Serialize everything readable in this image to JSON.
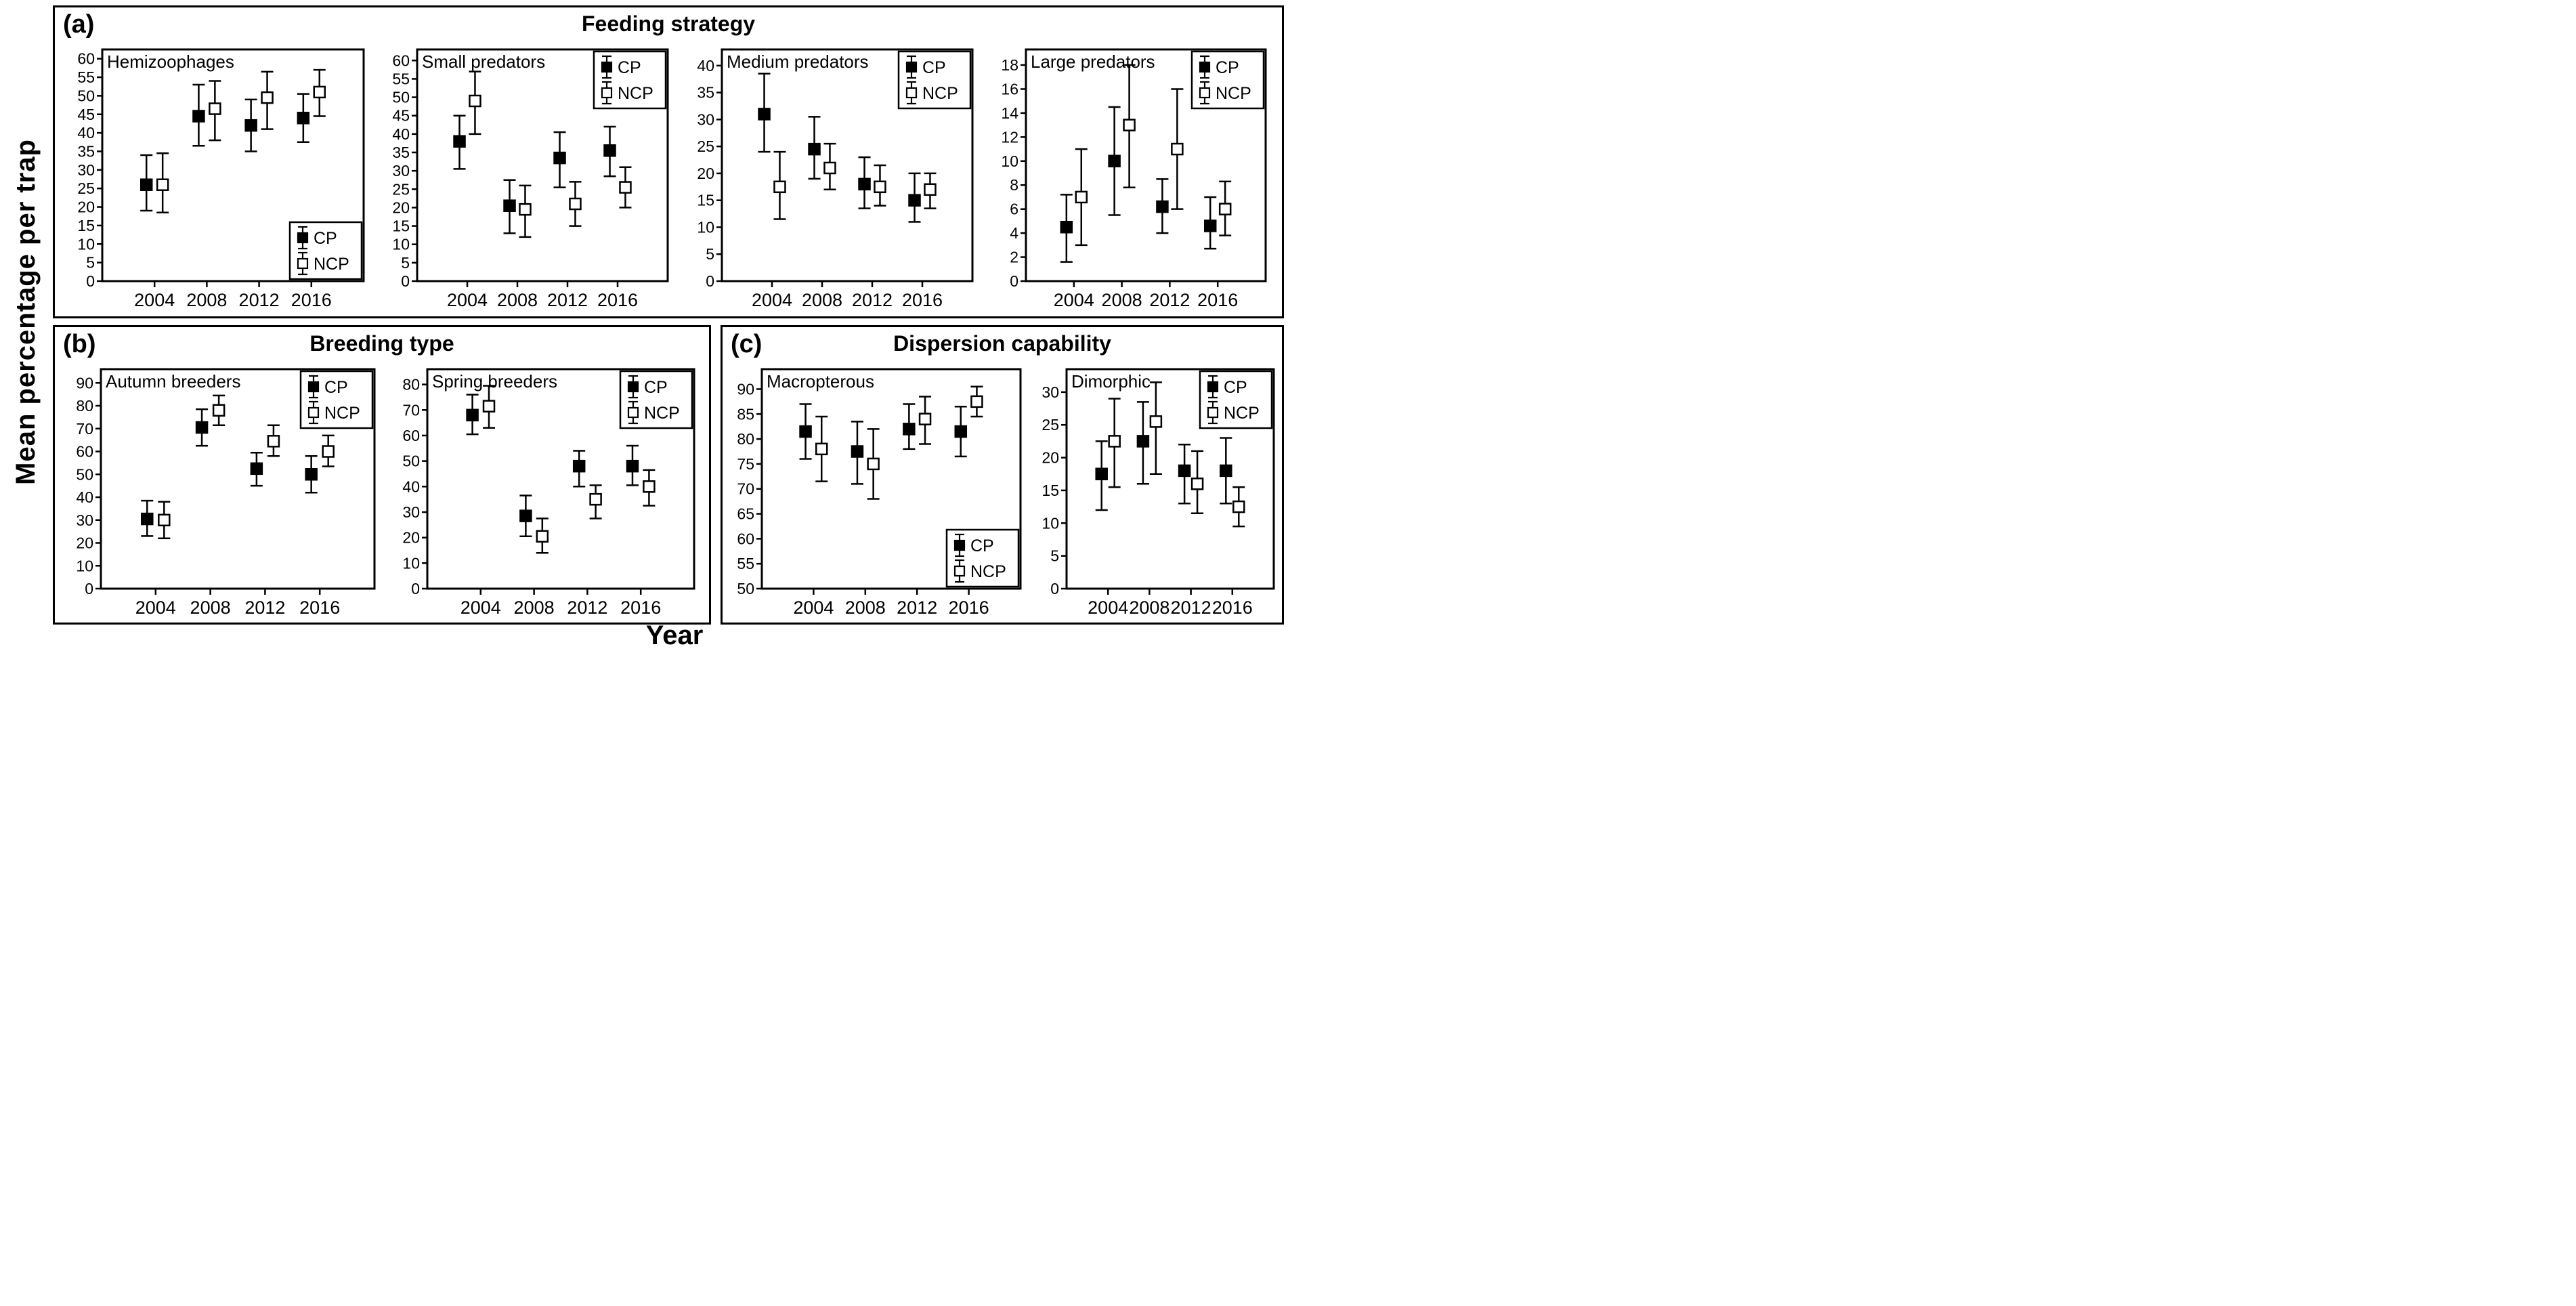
{
  "figure": {
    "ylabel": "Mean percentage per trap",
    "xlabel": "Year",
    "colors": {
      "foreground": "#000000",
      "background": "#ffffff"
    },
    "years": [
      2004,
      2008,
      2012,
      2016
    ],
    "panels": [
      {
        "label": "(a)",
        "title": "Feeding strategy"
      },
      {
        "label": "(b)",
        "title": "Breeding type"
      },
      {
        "label": "(c)",
        "title": "Dispersion capability"
      }
    ]
  },
  "chart_data": [
    {
      "panel": "a",
      "title": "Hemizoophages",
      "type": "scatter",
      "x": [
        2004,
        2008,
        2012,
        2016
      ],
      "xlim": [
        2000,
        2020
      ],
      "ylim": [
        0,
        62.5
      ],
      "yticks": [
        0,
        5,
        10,
        15,
        20,
        25,
        30,
        35,
        40,
        45,
        50,
        55,
        60
      ],
      "legend_pos": "bottom-right",
      "grid": false,
      "series": [
        {
          "name": "CP",
          "marker": "filled-square",
          "fill": "#000000",
          "values": [
            26,
            44.5,
            42,
            44
          ],
          "err_low": [
            19,
            36.5,
            35,
            37.5
          ],
          "err_high": [
            34,
            53,
            49,
            50.5
          ]
        },
        {
          "name": "NCP",
          "marker": "open-square",
          "fill": "#ffffff",
          "values": [
            26,
            46.5,
            49.5,
            51
          ],
          "err_low": [
            18.5,
            38,
            41,
            44.5
          ],
          "err_high": [
            34.5,
            54,
            56.5,
            57
          ]
        }
      ]
    },
    {
      "panel": "a",
      "title": "Small predators",
      "type": "scatter",
      "x": [
        2004,
        2008,
        2012,
        2016
      ],
      "xlim": [
        2000,
        2020
      ],
      "ylim": [
        0,
        63
      ],
      "yticks": [
        0,
        5,
        10,
        15,
        20,
        25,
        30,
        35,
        40,
        45,
        50,
        55,
        60
      ],
      "legend_pos": "top-right",
      "grid": false,
      "series": [
        {
          "name": "CP",
          "marker": "filled-square",
          "fill": "#000000",
          "values": [
            38,
            20.5,
            33.5,
            35.5
          ],
          "err_low": [
            30.5,
            13,
            25.5,
            28.5
          ],
          "err_high": [
            45,
            27.5,
            40.5,
            42
          ]
        },
        {
          "name": "NCP",
          "marker": "open-square",
          "fill": "#ffffff",
          "values": [
            49,
            19.5,
            21,
            25.5
          ],
          "err_low": [
            40,
            12,
            15,
            20
          ],
          "err_high": [
            57,
            26,
            27,
            31
          ]
        }
      ]
    },
    {
      "panel": "a",
      "title": "Medium predators",
      "type": "scatter",
      "x": [
        2004,
        2008,
        2012,
        2016
      ],
      "xlim": [
        2000,
        2020
      ],
      "ylim": [
        0,
        43
      ],
      "yticks": [
        0,
        5,
        10,
        15,
        20,
        25,
        30,
        35,
        40
      ],
      "legend_pos": "top-right",
      "grid": false,
      "series": [
        {
          "name": "CP",
          "marker": "filled-square",
          "fill": "#000000",
          "values": [
            31,
            24.5,
            18,
            15
          ],
          "err_low": [
            24,
            19,
            13.5,
            11
          ],
          "err_high": [
            38.5,
            30.5,
            23,
            20
          ]
        },
        {
          "name": "NCP",
          "marker": "open-square",
          "fill": "#ffffff",
          "values": [
            17.5,
            21,
            17.5,
            17
          ],
          "err_low": [
            11.5,
            17,
            14,
            13.5
          ],
          "err_high": [
            24,
            25.5,
            21.5,
            20
          ]
        }
      ]
    },
    {
      "panel": "a",
      "title": "Large predators",
      "type": "scatter",
      "x": [
        2004,
        2008,
        2012,
        2016
      ],
      "xlim": [
        2000,
        2020
      ],
      "ylim": [
        0,
        19.3
      ],
      "yticks": [
        0,
        2,
        4,
        6,
        8,
        10,
        12,
        14,
        16,
        18
      ],
      "legend_pos": "top-right",
      "grid": false,
      "series": [
        {
          "name": "CP",
          "marker": "filled-square",
          "fill": "#000000",
          "values": [
            4.5,
            10,
            6.2,
            4.6
          ],
          "err_low": [
            1.6,
            5.5,
            4,
            2.7
          ],
          "err_high": [
            7.2,
            14.5,
            8.5,
            7
          ]
        },
        {
          "name": "NCP",
          "marker": "open-square",
          "fill": "#ffffff",
          "values": [
            7,
            13,
            11,
            6
          ],
          "err_low": [
            3,
            7.8,
            6,
            3.8
          ],
          "err_high": [
            11,
            18,
            16,
            8.3
          ]
        }
      ]
    },
    {
      "panel": "b",
      "title": "Autumn breeders",
      "type": "scatter",
      "x": [
        2004,
        2008,
        2012,
        2016
      ],
      "xlim": [
        2000,
        2020
      ],
      "ylim": [
        0,
        96
      ],
      "yticks": [
        0,
        10,
        20,
        30,
        40,
        50,
        60,
        70,
        80,
        90
      ],
      "legend_pos": "top-right",
      "grid": false,
      "series": [
        {
          "name": "CP",
          "marker": "filled-square",
          "fill": "#000000",
          "values": [
            30.5,
            70.5,
            52.5,
            50
          ],
          "err_low": [
            23,
            62.5,
            45,
            42
          ],
          "err_high": [
            38.5,
            78.5,
            59.5,
            58
          ]
        },
        {
          "name": "NCP",
          "marker": "open-square",
          "fill": "#ffffff",
          "values": [
            30,
            78,
            64.5,
            60
          ],
          "err_low": [
            22,
            71.5,
            58,
            53.5
          ],
          "err_high": [
            38,
            84.5,
            71.5,
            67
          ]
        }
      ]
    },
    {
      "panel": "b",
      "title": "Spring breeders",
      "type": "scatter",
      "x": [
        2004,
        2008,
        2012,
        2016
      ],
      "xlim": [
        2000,
        2020
      ],
      "ylim": [
        0,
        86
      ],
      "yticks": [
        0,
        10,
        20,
        30,
        40,
        50,
        60,
        70,
        80
      ],
      "legend_pos": "top-right",
      "grid": false,
      "series": [
        {
          "name": "CP",
          "marker": "filled-square",
          "fill": "#000000",
          "values": [
            68,
            28.5,
            48,
            48
          ],
          "err_low": [
            60.5,
            20.5,
            40,
            40.5
          ],
          "err_high": [
            76,
            36.5,
            54,
            56
          ]
        },
        {
          "name": "NCP",
          "marker": "open-square",
          "fill": "#ffffff",
          "values": [
            71.5,
            20.5,
            35,
            40
          ],
          "err_low": [
            63,
            14,
            27.5,
            32.5
          ],
          "err_high": [
            79.5,
            27.5,
            40.5,
            46.5
          ]
        }
      ]
    },
    {
      "panel": "c",
      "title": "Macropterous",
      "type": "scatter",
      "x": [
        2004,
        2008,
        2012,
        2016
      ],
      "xlim": [
        2000,
        2020
      ],
      "ylim": [
        50,
        94
      ],
      "yticks": [
        50,
        55,
        60,
        65,
        70,
        75,
        80,
        85,
        90
      ],
      "legend_pos": "bottom-right",
      "grid": false,
      "series": [
        {
          "name": "CP",
          "marker": "filled-square",
          "fill": "#000000",
          "values": [
            81.5,
            77.5,
            82,
            81.5
          ],
          "err_low": [
            76,
            71,
            78,
            76.5
          ],
          "err_high": [
            87,
            83.5,
            87,
            86.5
          ]
        },
        {
          "name": "NCP",
          "marker": "open-square",
          "fill": "#ffffff",
          "values": [
            78,
            75,
            84,
            87.5
          ],
          "err_low": [
            71.5,
            68,
            79,
            84.5
          ],
          "err_high": [
            84.5,
            82,
            88.5,
            90.5
          ]
        }
      ]
    },
    {
      "panel": "c",
      "title": "Dimorphic",
      "type": "scatter",
      "x": [
        2004,
        2008,
        2012,
        2016
      ],
      "xlim": [
        2000,
        2020
      ],
      "ylim": [
        0,
        33.5
      ],
      "yticks": [
        0,
        5,
        10,
        15,
        20,
        25,
        30
      ],
      "legend_pos": "top-right",
      "grid": false,
      "series": [
        {
          "name": "CP",
          "marker": "filled-square",
          "fill": "#000000",
          "values": [
            17.5,
            22.5,
            18,
            18
          ],
          "err_low": [
            12,
            16,
            13,
            13
          ],
          "err_high": [
            22.5,
            28.5,
            22,
            23
          ]
        },
        {
          "name": "NCP",
          "marker": "open-square",
          "fill": "#ffffff",
          "values": [
            22.5,
            25.5,
            16,
            12.5
          ],
          "err_low": [
            15.5,
            17.5,
            11.5,
            9.5
          ],
          "err_high": [
            29,
            31.5,
            21,
            15.5
          ]
        }
      ]
    }
  ]
}
